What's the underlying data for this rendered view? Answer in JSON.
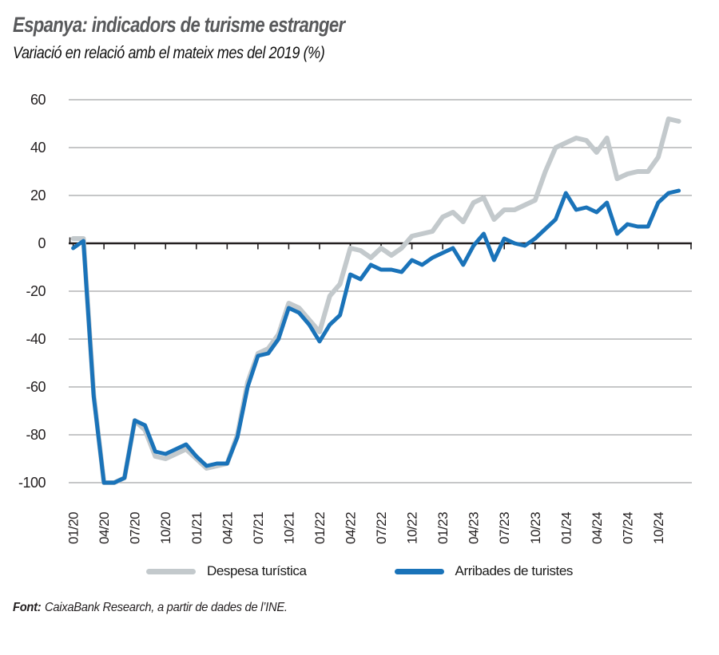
{
  "header": {
    "title": "Espanya: indicadors de turisme estranger",
    "subtitle": "Variació en relació amb el mateix mes del 2019 (%)"
  },
  "legend": {
    "items": [
      {
        "label": "Despesa turística",
        "color": "#C3C9CC"
      },
      {
        "label": "Arribades de turistes",
        "color": "#1A73B9"
      }
    ]
  },
  "footer": {
    "label": "Font:",
    "text": "CaixaBank Research, a partir de dades de l’INE."
  },
  "colors": {
    "title": "#58595B",
    "axis_text": "#231F20",
    "gridline": "#8C8F92",
    "zero_axis": "#231F20",
    "despesa_line": "#C3C9CC",
    "arribades_line": "#1A73B9"
  },
  "chart_data": {
    "type": "line",
    "x": [
      "01/20",
      "02/20",
      "03/20",
      "04/20",
      "05/20",
      "06/20",
      "07/20",
      "08/20",
      "09/20",
      "10/20",
      "11/20",
      "12/20",
      "01/21",
      "02/21",
      "03/21",
      "04/21",
      "05/21",
      "06/21",
      "07/21",
      "08/21",
      "09/21",
      "10/21",
      "11/21",
      "12/21",
      "01/22",
      "02/22",
      "03/22",
      "04/22",
      "05/22",
      "06/22",
      "07/22",
      "08/22",
      "09/22",
      "10/22",
      "11/22",
      "12/22",
      "01/23",
      "02/23",
      "03/23",
      "04/23",
      "05/23",
      "06/23",
      "07/23",
      "08/23",
      "09/23",
      "10/23",
      "11/23",
      "12/23",
      "01/24",
      "02/24",
      "03/24",
      "04/24",
      "05/24",
      "06/24",
      "07/24",
      "08/24",
      "09/24",
      "10/24",
      "11/24",
      "12/24"
    ],
    "x_tick_step": 3,
    "series": [
      {
        "name": "Despesa turística",
        "color": "#C3C9CC",
        "values": [
          2,
          2,
          -63,
          -100,
          -100,
          -98,
          -74,
          -78,
          -89,
          -90,
          -88,
          -86,
          -90,
          -94,
          -93,
          -92,
          -80,
          -58,
          -46,
          -44,
          -38,
          -25,
          -27,
          -32,
          -37,
          -22,
          -17,
          -2,
          -3,
          -6,
          -2,
          -5,
          -2,
          3,
          4,
          5,
          11,
          13,
          9,
          17,
          19,
          10,
          14,
          14,
          16,
          18,
          30,
          40,
          42,
          44,
          43,
          38,
          44,
          27,
          29,
          30,
          30,
          36,
          52,
          51
        ]
      },
      {
        "name": "Arribades de turistes",
        "color": "#1A73B9",
        "values": [
          -2,
          1,
          -64,
          -100,
          -100,
          -98,
          -74,
          -76,
          -87,
          -88,
          -86,
          -84,
          -89,
          -93,
          -92,
          -92,
          -81,
          -60,
          -47,
          -46,
          -40,
          -27,
          -29,
          -34,
          -41,
          -34,
          -30,
          -13,
          -15,
          -9,
          -11,
          -11,
          -12,
          -7,
          -9,
          -6,
          -4,
          -2,
          -9,
          -1,
          4,
          -7,
          2,
          0,
          -1,
          2,
          6,
          10,
          21,
          14,
          15,
          13,
          17,
          4,
          8,
          7,
          7,
          17,
          21,
          22
        ]
      }
    ],
    "ylim": [
      -100,
      60
    ],
    "yticks": [
      60,
      40,
      20,
      0,
      -20,
      -40,
      -60,
      -80,
      -100
    ],
    "grid": "horizontal",
    "legend_position": "bottom",
    "title": "Espanya: indicadors de turisme estranger",
    "xlabel": "",
    "ylabel": "Variació en relació amb el mateix mes del 2019 (%)"
  }
}
